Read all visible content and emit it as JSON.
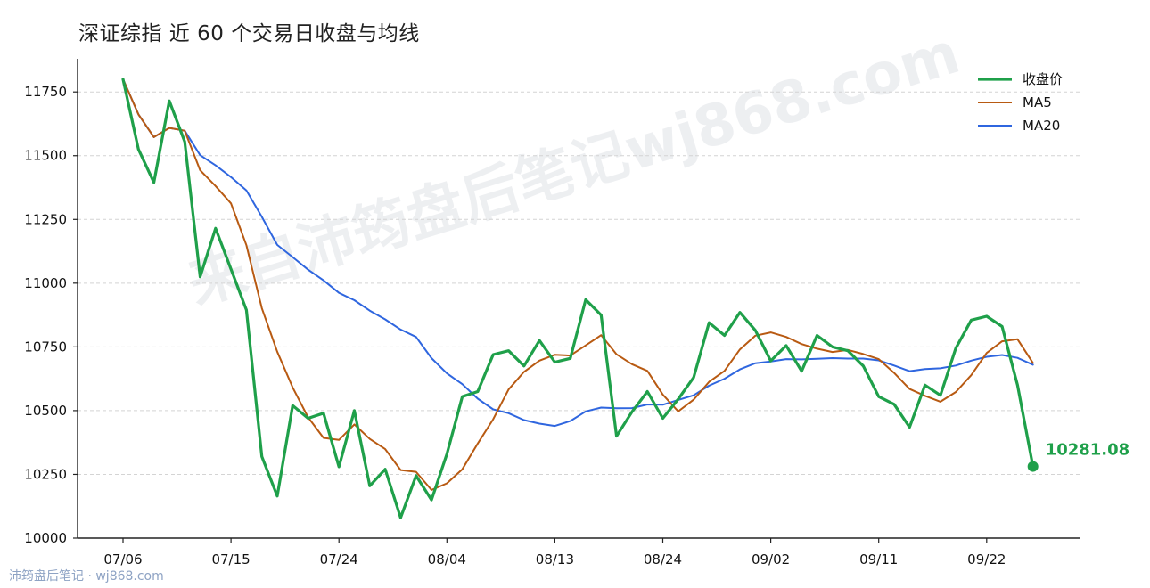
{
  "title": "深证综指 近 60 个交易日收盘与均线",
  "watermark": "来自沛筠盘后笔记wj868.com",
  "footer": "沛筠盘后笔记 · wj868.com",
  "chart_data": {
    "type": "line",
    "title": "深证综指 近 60 个交易日收盘与均线",
    "xlabel": "",
    "ylabel": "",
    "ylim": [
      10000,
      11880
    ],
    "yticks": [
      10000,
      10250,
      10500,
      10750,
      11000,
      11250,
      11500,
      11750
    ],
    "xtick_labels": [
      {
        "index": 0,
        "label": "07/06"
      },
      {
        "index": 7,
        "label": "07/15"
      },
      {
        "index": 14,
        "label": "07/24"
      },
      {
        "index": 21,
        "label": "08/04"
      },
      {
        "index": 28,
        "label": "08/13"
      },
      {
        "index": 35,
        "label": "08/24"
      },
      {
        "index": 42,
        "label": "09/02"
      },
      {
        "index": 49,
        "label": "09/11"
      },
      {
        "index": 56,
        "label": "09/22"
      }
    ],
    "grid": "horizontal dashed",
    "legend_position": "top-right",
    "series": [
      {
        "name": "收盘价",
        "color": "#1fa04a",
        "width": 3.2,
        "values": [
          11800,
          11525,
          11395,
          11715,
          11555,
          11025,
          11215,
          11055,
          10895,
          10320,
          10165,
          10520,
          10470,
          10490,
          10280,
          10500,
          10205,
          10270,
          10080,
          10245,
          10150,
          10330,
          10555,
          10575,
          10720,
          10735,
          10675,
          10775,
          10690,
          10705,
          10935,
          10875,
          10400,
          10495,
          10575,
          10470,
          10545,
          10630,
          10845,
          10795,
          10885,
          10815,
          10695,
          10755,
          10655,
          10795,
          10750,
          10735,
          10675,
          10555,
          10525,
          10435,
          10600,
          10560,
          10745,
          10855,
          10870,
          10830,
          10600,
          10281.08
        ]
      },
      {
        "name": "MA5",
        "color": "#b85a12",
        "width": 2,
        "values": [
          11800,
          11662,
          11573,
          11609,
          11598,
          11443,
          11381,
          11313,
          11149,
          10902,
          10731,
          10591,
          10474,
          10393,
          10385,
          10446,
          10389,
          10349,
          10267,
          10260,
          10189,
          10215,
          10270,
          10371,
          10466,
          10583,
          10652,
          10696,
          10719,
          10716,
          10756,
          10796,
          10721,
          10682,
          10656,
          10563,
          10497,
          10543,
          10613,
          10656,
          10740,
          10794,
          10807,
          10789,
          10761,
          10743,
          10730,
          10738,
          10722,
          10702,
          10648,
          10585,
          10558,
          10535,
          10573,
          10639,
          10726,
          10772,
          10780,
          10687
        ]
      },
      {
        "name": "MA20",
        "color": "#2f66df",
        "width": 2,
        "values": [
          11800,
          11662,
          11573,
          11609,
          11598,
          11502,
          11462,
          11416,
          11364,
          11260,
          11150,
          11102,
          11053,
          11011,
          10962,
          10933,
          10892,
          10858,
          10818,
          10789,
          10706,
          10646,
          10604,
          10547,
          10505,
          10490,
          10463,
          10449,
          10440,
          10459,
          10497,
          10512,
          10509,
          10510,
          10524,
          10523,
          10542,
          10560,
          10598,
          10625,
          10662,
          10686,
          10693,
          10702,
          10701,
          10703,
          10706,
          10704,
          10704,
          10697,
          10677,
          10655,
          10663,
          10666,
          10677,
          10696,
          10711,
          10718,
          10707,
          10680
        ]
      }
    ],
    "last_value_label": "10281.08",
    "last_value_color": "#1fa04a"
  }
}
